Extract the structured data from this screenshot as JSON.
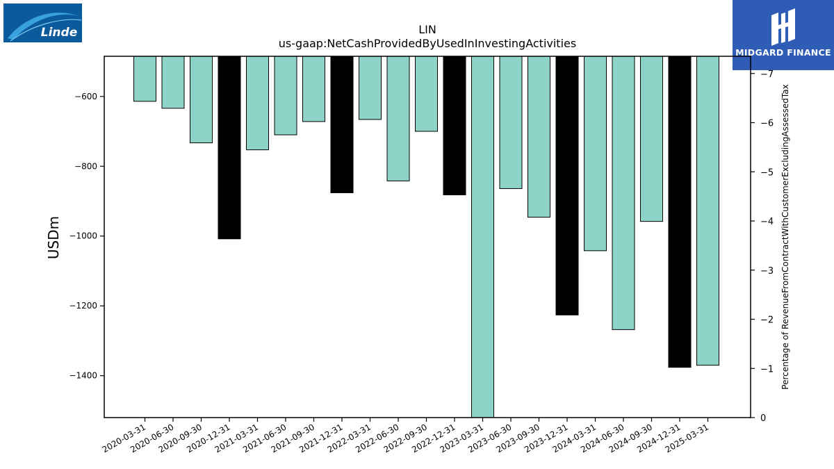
{
  "company_logo": {
    "text": "Linde",
    "colors": {
      "bg": "#0a5a9c",
      "swoosh": "#3ea8e6"
    }
  },
  "brand": {
    "name": "MIDGARD FINANCE",
    "color": "#2f5db6"
  },
  "chart_data": {
    "type": "bar",
    "title": "LIN",
    "subtitle": "us-gaap:NetCashProvidedByUsedInInvestingActivities",
    "ylabel": "USDm",
    "y2label": "Percentage of RevenueFromContractWithCustomerExcludingAssessedTax",
    "ylim": [
      -1520,
      -485
    ],
    "y2lim": [
      0,
      -7.35
    ],
    "yticks": [
      -600,
      -800,
      -1000,
      -1200,
      -1400
    ],
    "ytick_labels": [
      "−600",
      "−800",
      "−1000",
      "−1200",
      "−1400"
    ],
    "y2ticks": [
      -7,
      -6,
      -5,
      -4,
      -3,
      -2,
      -1,
      0
    ],
    "y2tick_labels": [
      "−7",
      "−6",
      "−5",
      "−4",
      "−3",
      "−2",
      "−1",
      "0"
    ],
    "categories": [
      "2020-03-31",
      "2020-06-30",
      "2020-09-30",
      "2020-12-31",
      "2021-03-31",
      "2021-06-30",
      "2021-09-30",
      "2021-12-31",
      "2022-03-31",
      "2022-06-30",
      "2022-09-30",
      "2022-12-31",
      "2023-03-31",
      "2023-06-30",
      "2023-09-30",
      "2023-12-31",
      "2024-03-31",
      "2024-06-30",
      "2024-09-30",
      "2024-12-31",
      "2025-03-31"
    ],
    "values": [
      -614,
      -634,
      -733,
      -1008,
      -753,
      -710,
      -672,
      -876,
      -666,
      -842,
      -700,
      -882,
      -1520,
      -864,
      -946,
      -1226,
      -1042,
      -1268,
      -958,
      -1376,
      -1370
    ],
    "year_end": [
      false,
      false,
      false,
      true,
      false,
      false,
      false,
      true,
      false,
      false,
      false,
      true,
      false,
      false,
      false,
      true,
      false,
      false,
      false,
      true,
      false
    ],
    "colors": {
      "quarter": "#8dd3c7",
      "year_end": "#000000",
      "edge": "#000000"
    }
  }
}
